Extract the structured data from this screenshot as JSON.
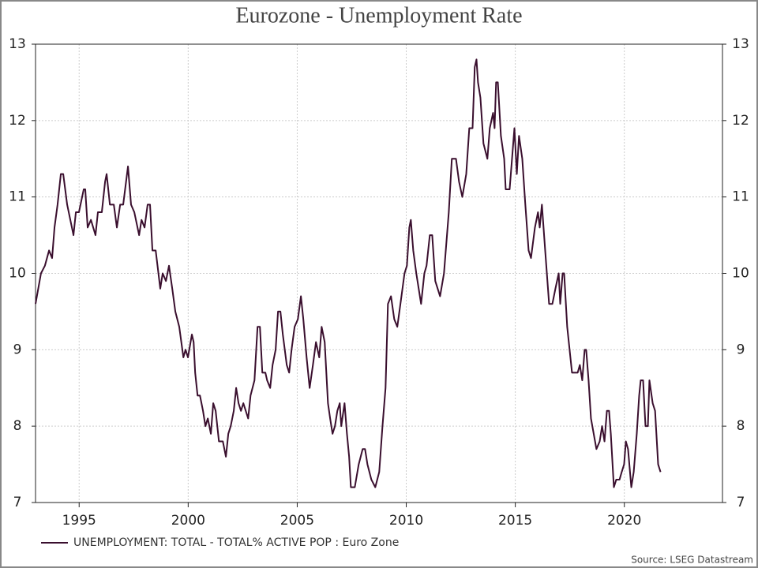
{
  "chart_data": {
    "type": "line",
    "title": "Eurozone - Unemployment Rate",
    "source": "Source: LSEG Datastream",
    "x": [
      1993.0,
      1993.25,
      1993.43,
      1993.62,
      1993.76,
      1993.87,
      1994.01,
      1994.16,
      1994.27,
      1994.45,
      1994.74,
      1994.85,
      1994.99,
      1995.21,
      1995.28,
      1995.39,
      1995.54,
      1995.75,
      1995.86,
      1996.04,
      1996.19,
      1996.26,
      1996.41,
      1996.59,
      1996.73,
      1996.88,
      1997.02,
      1997.24,
      1997.38,
      1997.53,
      1997.75,
      1997.86,
      1998.0,
      1998.14,
      1998.25,
      1998.36,
      1998.51,
      1998.72,
      1998.83,
      1998.98,
      1999.12,
      1999.27,
      1999.41,
      1999.59,
      1999.78,
      1999.88,
      1999.99,
      2000.17,
      2000.25,
      2000.32,
      2000.43,
      2000.54,
      2000.68,
      2000.79,
      2000.9,
      2001.04,
      2001.15,
      2001.26,
      2001.41,
      2001.59,
      2001.73,
      2001.84,
      2001.95,
      2002.09,
      2002.2,
      2002.31,
      2002.42,
      2002.53,
      2002.75,
      2002.86,
      2003.04,
      2003.18,
      2003.29,
      2003.4,
      2003.54,
      2003.62,
      2003.76,
      2003.87,
      2004.01,
      2004.12,
      2004.23,
      2004.34,
      2004.52,
      2004.63,
      2004.74,
      2004.88,
      2005.03,
      2005.17,
      2005.28,
      2005.43,
      2005.57,
      2005.72,
      2005.86,
      2006.01,
      2006.12,
      2006.26,
      2006.41,
      2006.51,
      2006.62,
      2006.73,
      2006.84,
      2006.95,
      2007.02,
      2007.17,
      2007.28,
      2007.38,
      2007.46,
      2007.64,
      2007.82,
      2008.0,
      2008.11,
      2008.22,
      2008.4,
      2008.58,
      2008.76,
      2008.91,
      2009.05,
      2009.16,
      2009.3,
      2009.45,
      2009.59,
      2009.78,
      2009.92,
      2010.03,
      2010.14,
      2010.21,
      2010.32,
      2010.46,
      2010.68,
      2010.83,
      2010.93,
      2011.08,
      2011.19,
      2011.33,
      2011.55,
      2011.73,
      2011.95,
      2012.09,
      2012.28,
      2012.42,
      2012.57,
      2012.75,
      2012.89,
      2013.04,
      2013.14,
      2013.22,
      2013.29,
      2013.4,
      2013.54,
      2013.72,
      2013.83,
      2013.98,
      2014.05,
      2014.12,
      2014.2,
      2014.34,
      2014.49,
      2014.56,
      2014.74,
      2014.85,
      2014.96,
      2015.07,
      2015.17,
      2015.32,
      2015.46,
      2015.61,
      2015.72,
      2015.9,
      2016.04,
      2016.12,
      2016.22,
      2016.37,
      2016.55,
      2016.7,
      2016.84,
      2016.99,
      2017.06,
      2017.17,
      2017.24,
      2017.38,
      2017.49,
      2017.6,
      2017.86,
      2017.96,
      2018.07,
      2018.18,
      2018.25,
      2018.36,
      2018.47,
      2018.72,
      2018.87,
      2018.98,
      2019.09,
      2019.2,
      2019.3,
      2019.38,
      2019.52,
      2019.63,
      2019.78,
      2019.88,
      2019.99,
      2020.07,
      2020.17,
      2020.32,
      2020.43,
      2020.57,
      2020.68,
      2020.75,
      2020.86,
      2020.97,
      2021.08,
      2021.15,
      2021.3,
      2021.41,
      2021.55,
      2021.66
    ],
    "series": [
      {
        "name": "UNEMPLOYMENT: TOTAL - TOTAL% ACTIVE POP : Euro Zone",
        "color": "#3a0f2e",
        "values": [
          9.6,
          10.0,
          10.1,
          10.3,
          10.2,
          10.6,
          10.9,
          11.3,
          11.3,
          10.9,
          10.5,
          10.8,
          10.8,
          11.1,
          11.1,
          10.6,
          10.7,
          10.5,
          10.8,
          10.8,
          11.2,
          11.3,
          10.9,
          10.9,
          10.6,
          10.9,
          10.9,
          11.4,
          10.9,
          10.8,
          10.5,
          10.7,
          10.6,
          10.9,
          10.9,
          10.3,
          10.3,
          9.8,
          10.0,
          9.9,
          10.1,
          9.8,
          9.5,
          9.3,
          8.9,
          9.0,
          8.9,
          9.2,
          9.1,
          8.7,
          8.4,
          8.4,
          8.2,
          8.0,
          8.1,
          7.9,
          8.3,
          8.2,
          7.8,
          7.8,
          7.6,
          7.9,
          8.0,
          8.2,
          8.5,
          8.3,
          8.2,
          8.3,
          8.1,
          8.4,
          8.6,
          9.3,
          9.3,
          8.7,
          8.7,
          8.6,
          8.5,
          8.8,
          9.0,
          9.5,
          9.5,
          9.2,
          8.8,
          8.7,
          9.0,
          9.3,
          9.4,
          9.7,
          9.4,
          8.9,
          8.5,
          8.8,
          9.1,
          8.9,
          9.3,
          9.1,
          8.3,
          8.1,
          7.9,
          8.0,
          8.2,
          8.3,
          8.0,
          8.3,
          7.9,
          7.6,
          7.2,
          7.2,
          7.5,
          7.7,
          7.7,
          7.5,
          7.3,
          7.2,
          7.4,
          8.0,
          8.5,
          9.6,
          9.7,
          9.4,
          9.3,
          9.7,
          10.0,
          10.1,
          10.6,
          10.7,
          10.3,
          10.0,
          9.6,
          10.0,
          10.1,
          10.5,
          10.5,
          9.9,
          9.7,
          10.0,
          10.8,
          11.5,
          11.5,
          11.2,
          11.0,
          11.3,
          11.9,
          11.9,
          12.7,
          12.8,
          12.5,
          12.3,
          11.7,
          11.5,
          11.9,
          12.1,
          11.9,
          12.5,
          12.5,
          11.8,
          11.5,
          11.1,
          11.1,
          11.5,
          11.9,
          11.3,
          11.8,
          11.5,
          10.9,
          10.3,
          10.2,
          10.6,
          10.8,
          10.6,
          10.9,
          10.3,
          9.6,
          9.6,
          9.8,
          10.0,
          9.6,
          10.0,
          10.0,
          9.3,
          9.0,
          8.7,
          8.7,
          8.8,
          8.6,
          9.0,
          9.0,
          8.6,
          8.1,
          7.7,
          7.8,
          8.0,
          7.8,
          8.2,
          8.2,
          7.9,
          7.2,
          7.3,
          7.3,
          7.4,
          7.5,
          7.8,
          7.7,
          7.2,
          7.4,
          7.9,
          8.4,
          8.6,
          8.6,
          8.0,
          8.0,
          8.6,
          8.3,
          8.2,
          7.5,
          7.4
        ]
      }
    ],
    "xlim": [
      1993,
      2024.5
    ],
    "xticks": [
      1995,
      2000,
      2005,
      2010,
      2015,
      2020
    ],
    "ylim": [
      7,
      13
    ],
    "yticks": [
      7,
      8,
      9,
      10,
      11,
      12,
      13
    ],
    "y2lim": [
      7,
      13
    ],
    "y2ticks": [
      7,
      8,
      9,
      10,
      11,
      12,
      13
    ],
    "grid": true,
    "legend": "bottom-left"
  }
}
